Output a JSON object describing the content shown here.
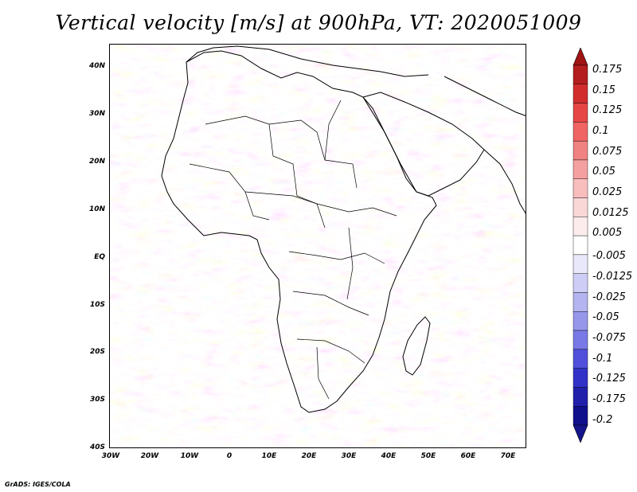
{
  "title": "Vertical velocity [m/s] at 900hPa, VT: 2020051009",
  "footer": "GrADS: IGES/COLA",
  "map": {
    "region": "Africa",
    "lat_labels": [
      "40N",
      "30N",
      "20N",
      "10N",
      "EQ",
      "10S",
      "20S",
      "30S",
      "40S"
    ],
    "lon_labels": [
      "30W",
      "20W",
      "10W",
      "0",
      "10E",
      "20E",
      "30E",
      "40E",
      "50E",
      "60E",
      "70E"
    ],
    "land_line_color": "#000000"
  },
  "colorbar": {
    "levels": [
      "0.175",
      "0.15",
      "0.125",
      "0.1",
      "0.075",
      "0.05",
      "0.025",
      "0.0125",
      "0.005",
      "-0.005",
      "-0.0125",
      "-0.025",
      "-0.05",
      "-0.075",
      "-0.1",
      "-0.125",
      "-0.175",
      "-0.2"
    ],
    "colors": [
      "#b41e1e",
      "#d22d2d",
      "#e64646",
      "#f06464",
      "#f08282",
      "#f5a0a0",
      "#f8bebe",
      "#fad7d7",
      "#fdecec",
      "#ffffff",
      "#e8e8fa",
      "#cdcdf5",
      "#b4b4f0",
      "#9696eb",
      "#7878e6",
      "#5050dc",
      "#3232c8",
      "#2020aa",
      "#10108c"
    ],
    "top_arrow_color": "#a01414",
    "bottom_arrow_color": "#14148c"
  }
}
